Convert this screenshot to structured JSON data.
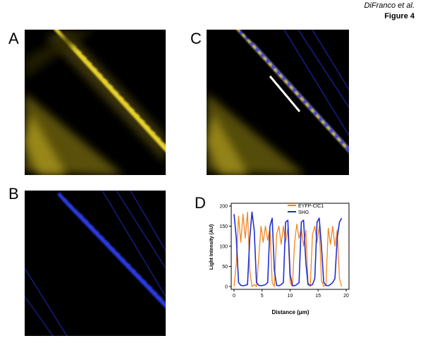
{
  "header": {
    "author": "DiFranco et al.",
    "figure": "Figure 4"
  },
  "panels": {
    "a": {
      "letter": "A",
      "channel": "yellow"
    },
    "b": {
      "letter": "B",
      "channel": "blue"
    },
    "c": {
      "letter": "C",
      "channel": "merge"
    },
    "d": {
      "letter": "D"
    }
  },
  "colors": {
    "yellow": "#e8d22a",
    "blue": "#2a3be0",
    "orange": "#f5861f",
    "series_blue": "#1f2fd6",
    "white_line": "#ffffff"
  },
  "chart_data": {
    "type": "line",
    "xlabel": "Distance (μm)",
    "ylabel": "Light Intensity (AU)",
    "xlim": [
      0,
      20
    ],
    "ylim": [
      0,
      200
    ],
    "xticks": [
      0,
      5,
      10,
      15,
      20
    ],
    "yticks": [
      0,
      50,
      100,
      150,
      200
    ],
    "legend_position": "top-right",
    "series": [
      {
        "name": "EYFP-ClC1",
        "color": "#f5861f",
        "x": [
          0,
          0.4,
          0.8,
          1.2,
          1.6,
          2.0,
          2.4,
          2.8,
          3.2,
          3.6,
          4.0,
          4.4,
          4.8,
          5.2,
          5.6,
          6.0,
          6.4,
          6.8,
          7.2,
          7.6,
          8.0,
          8.4,
          8.8,
          9.2,
          9.6,
          10.0,
          10.4,
          10.8,
          11.2,
          11.6,
          12.0,
          12.4,
          12.8,
          13.2,
          13.6,
          14.0,
          14.4,
          14.8,
          15.2,
          15.6,
          16.0,
          16.4,
          16.8,
          17.2,
          17.6,
          18.0,
          18.4,
          18.8,
          19.2
        ],
        "values": [
          0,
          60,
          175,
          110,
          180,
          120,
          185,
          40,
          0,
          5,
          0,
          70,
          150,
          110,
          150,
          115,
          145,
          10,
          0,
          130,
          150,
          105,
          150,
          110,
          145,
          10,
          0,
          110,
          155,
          120,
          145,
          100,
          140,
          10,
          0,
          130,
          150,
          110,
          150,
          15,
          0,
          5,
          145,
          105,
          150,
          100,
          140,
          20,
          0
        ]
      },
      {
        "name": "SHG",
        "color": "#1f2fd6",
        "x": [
          0,
          0.4,
          0.8,
          1.2,
          1.6,
          2.0,
          2.4,
          2.8,
          3.2,
          3.6,
          4.0,
          4.4,
          4.8,
          5.2,
          5.6,
          6.0,
          6.4,
          6.8,
          7.2,
          7.6,
          8.0,
          8.4,
          8.8,
          9.2,
          9.6,
          10.0,
          10.4,
          10.8,
          11.2,
          11.6,
          12.0,
          12.4,
          12.8,
          13.2,
          13.6,
          14.0,
          14.4,
          14.8,
          15.2,
          15.6,
          16.0,
          16.4,
          16.8,
          17.2,
          17.6,
          18.0,
          18.4,
          18.8,
          19.2
        ],
        "values": [
          180,
          120,
          10,
          3,
          2,
          3,
          5,
          120,
          185,
          140,
          10,
          3,
          2,
          3,
          5,
          10,
          150,
          170,
          40,
          3,
          2,
          5,
          10,
          160,
          165,
          30,
          3,
          2,
          5,
          10,
          160,
          165,
          60,
          5,
          3,
          5,
          20,
          160,
          170,
          100,
          10,
          3,
          2,
          5,
          10,
          20,
          120,
          160,
          170
        ]
      }
    ]
  }
}
